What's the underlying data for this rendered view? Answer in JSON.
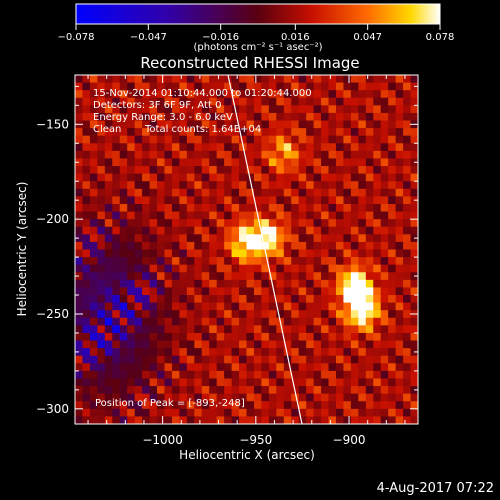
{
  "chart_data": {
    "type": "heatmap",
    "title": "Reconstructed RHESSI Image",
    "xlabel": "Heliocentric X (arcsec)",
    "ylabel": "Heliocentric Y (arcsec)",
    "xlim": [
      -1047,
      -863
    ],
    "ylim": [
      -308,
      -124
    ],
    "xticks": [
      -1000,
      -950,
      -900
    ],
    "xtick_labels": [
      "−1000",
      "−950",
      "−900"
    ],
    "yticks": [
      -150,
      -200,
      -250,
      -300
    ],
    "ytick_labels": [
      "−150",
      "−200",
      "−250",
      "−300"
    ],
    "colorbar": {
      "min": -0.078,
      "max": 0.078,
      "ticks": [
        -0.078,
        -0.047,
        -0.016,
        0.016,
        0.047,
        0.078
      ],
      "tick_labels": [
        "−0.078",
        "−0.047",
        "−0.016",
        "0.016",
        "0.047",
        "0.078"
      ],
      "unit_label": "(photons cm⁻² s⁻¹ asec⁻²)"
    },
    "peak_position": [
      -893,
      -248
    ],
    "sources": [
      {
        "x": -897,
        "y": -235,
        "value": 0.075
      },
      {
        "x": -893,
        "y": -248,
        "value": 0.078
      },
      {
        "x": -955,
        "y": -212,
        "value": 0.066
      },
      {
        "x": -943,
        "y": -210,
        "value": 0.06
      },
      {
        "x": -935,
        "y": -165,
        "value": 0.042
      }
    ],
    "grid": false,
    "legend": "none"
  },
  "annotations": {
    "time_range": "15-Nov-2014 01:10:44.000 to 01:20:44.000",
    "detectors": "Detectors: 3F 6F 9F, Att 0",
    "energy": "Energy Range: 3.0 - 6.0 keV",
    "method": "Clean",
    "counts": "Total counts: 1.64E+04",
    "peak": "Position of Peak = [-893,-248]"
  },
  "footer": {
    "date": "4-Aug-2017 07:22"
  },
  "colors": {
    "background": "#000000",
    "text": "#ffffff",
    "limb_line": "#ffffff"
  }
}
